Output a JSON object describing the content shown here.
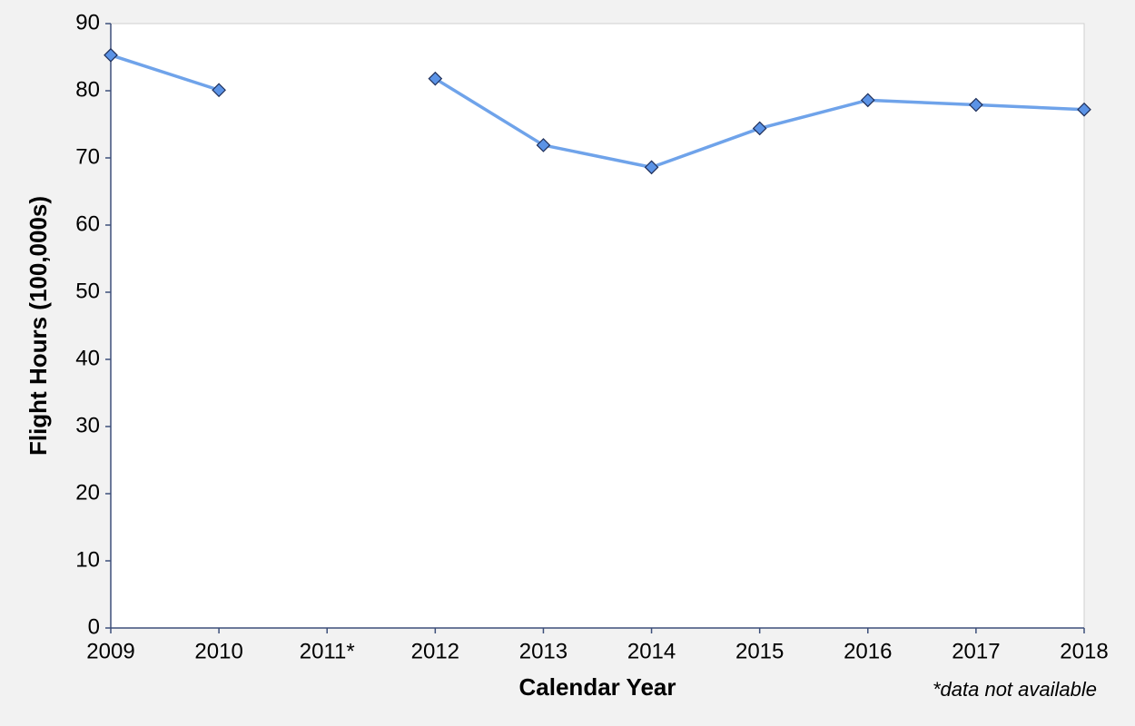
{
  "chart_data": {
    "type": "line",
    "x_label": "Calendar Year",
    "y_label": "Flight Hours (100,000s)",
    "annotation": "*data not available",
    "categories": [
      "2009",
      "2010",
      "2011*",
      "2012",
      "2013",
      "2014",
      "2015",
      "2016",
      "2017",
      "2018"
    ],
    "values": [
      85.3,
      80.1,
      null,
      81.8,
      71.9,
      68.6,
      74.4,
      78.6,
      77.9,
      77.2
    ],
    "color": "#6fa3ea",
    "marker_color": "#5b93e6",
    "ylim": [
      0,
      90
    ],
    "yticks": [
      0,
      10,
      20,
      30,
      40,
      50,
      60,
      70,
      80,
      90
    ],
    "grid": false
  }
}
